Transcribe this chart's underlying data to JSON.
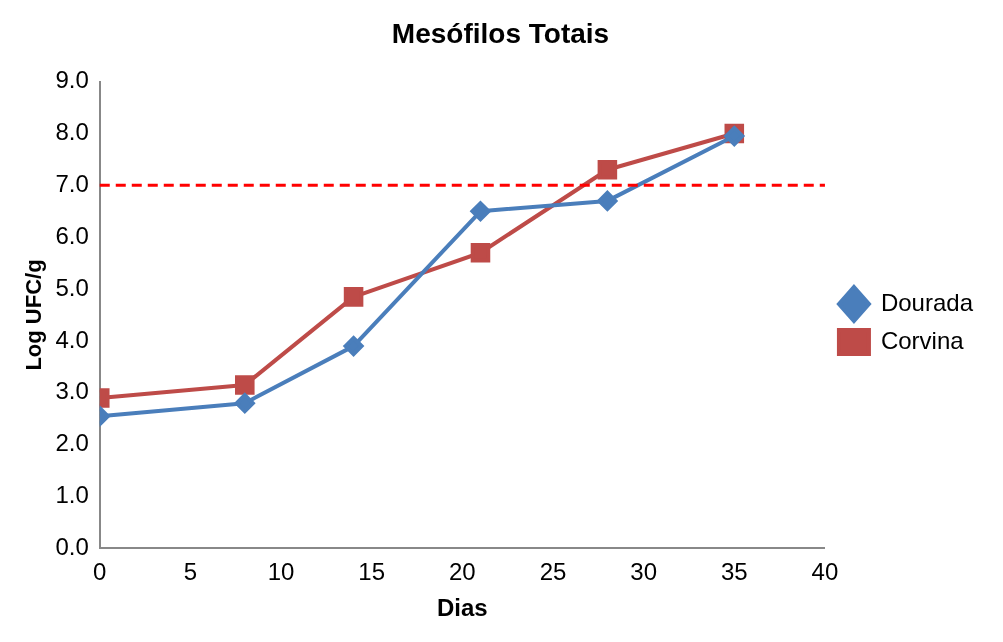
{
  "chart_data": {
    "type": "line",
    "title": "Mesófilos Totais",
    "xlabel": "Dias",
    "ylabel": "Log UFC/g",
    "xlim": [
      0,
      40
    ],
    "xticks": [
      0,
      5,
      10,
      15,
      20,
      25,
      30,
      35,
      40
    ],
    "ylim": [
      0,
      9
    ],
    "yticks": [
      {
        "value": 0,
        "label": "0.0"
      },
      {
        "value": 1,
        "label": "1.0"
      },
      {
        "value": 2,
        "label": "2.0"
      },
      {
        "value": 3,
        "label": "3.0"
      },
      {
        "value": 4,
        "label": "4.0"
      },
      {
        "value": 5,
        "label": "5.0"
      },
      {
        "value": 6,
        "label": "6.0"
      },
      {
        "value": 7,
        "label": "7.0"
      },
      {
        "value": 8,
        "label": "8.0"
      },
      {
        "value": 9,
        "label": "9.0"
      }
    ],
    "grid": false,
    "legend": "right",
    "line_style": "solid",
    "x": [
      0,
      8,
      14,
      21,
      28,
      35
    ],
    "series": [
      {
        "name": "Dourada",
        "color": "#4a7ebb",
        "marker": "diamond",
        "values": [
          2.55,
          2.8,
          3.9,
          6.5,
          6.7,
          7.95
        ]
      },
      {
        "name": "Corvina",
        "color": "#be4b48",
        "marker": "square",
        "values": [
          2.9,
          3.15,
          4.85,
          5.7,
          7.3,
          8.0
        ]
      }
    ],
    "ref_lines": [
      {
        "axis": "y",
        "value": 7,
        "label": null,
        "color": "#ff0000",
        "line_style": "dashed"
      }
    ]
  }
}
